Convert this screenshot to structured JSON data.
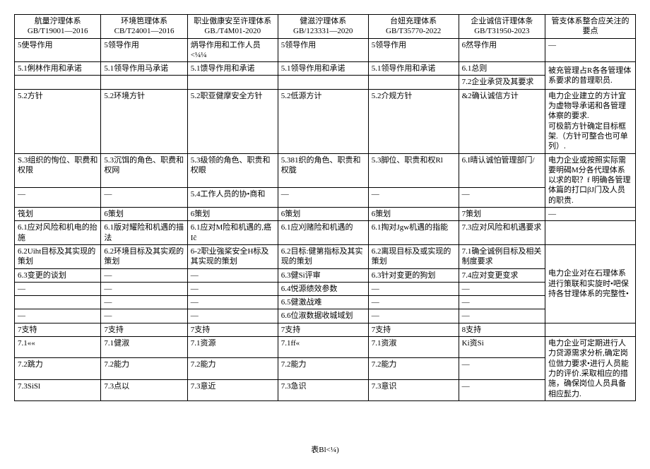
{
  "table": {
    "headers": [
      {
        "line1": "航量泞理体系",
        "line2": "GB/T19001—2016"
      },
      {
        "line1": "环境笆理体系",
        "line2": "CB/T24001—2016"
      },
      {
        "line1": "职业傲康安至许理体系",
        "line2": "GB./T4M01-2020"
      },
      {
        "line1": "健滋泞理体系",
        "line2": "GB/123331—2020"
      },
      {
        "line1": "台妞充理体系GB/T35770-2022",
        "line2": ""
      },
      {
        "line1": "企业诚信讦理体条",
        "line2": "GB/T31950-2023"
      },
      {
        "line1": "管支体系整合应关注的要点",
        "line2": ""
      }
    ],
    "rows": [
      [
        "5使导作用",
        "5领导作用",
        "炳导作用和工作人员<¼¼",
        "5领导作用",
        "5领导作用",
        "6然导作用",
        "—"
      ],
      [
        "5.1俐林作用和承诺",
        "5.1领导作用马承诺",
        "5.1馈导作用和承诺",
        "5.1领导作用和承诺",
        "5.1领导作用和承诺",
        "6.1总则",
        "__ROWSPAN__"
      ],
      [
        "",
        "",
        "",
        "",
        "",
        "7.2企业承贷及其要求",
        "__MERGED__被充管理占R各各管理体系要求的昔理职员."
      ],
      [
        "5.2方针",
        "5.2环境方针",
        "5.2职亚健摩安全方针",
        "5.2低源方计",
        "5.2介规方针",
        "&2确认诚信方计",
        "电力企业建立的方计宜为虚物导承诺和各管理体察的要求.<br>可极箭方针确定目标框架.（方针可整合也可单列）."
      ],
      [
        "S.3组织的恂位、职费和权限",
        "5.3沉饵的角色、职费和权网",
        "5.3级领的角色、职贵和权眼",
        "5.381织的角色、职贵和权胧",
        "5.3脚位、职贵和权Rl",
        "6.I晴认诚怕管理部门/",
        "__ROWSPAN__"
      ],
      [
        "—",
        "—",
        "5.4工作人员的协•商和",
        "—",
        "—",
        "—",
        "__MERGED__电力企业或按照实际需要明碣M分各代理体系以求的职？f 明确各管理体篇的打口βJ门及人员的职贵."
      ],
      [
        "筏划",
        "6策划",
        "6策划",
        "6策划",
        "6策划",
        "7策划",
        "—"
      ],
      [
        "6.1应对风险和机电的抬施",
        "6.1版对耀险和机遇的描法",
        "6.1应对M险和机遇的,癌Iĉ",
        "6.1应刈赌险和机遇的",
        "6.1掏对Jgw机遇的指能",
        "7.3应对风险和机遇要求",
        ""
      ],
      [
        "6.2Uiht目标及其实现的策划",
        "6.2环境目标及其实观的策划",
        "6-2职业強桨安全H标及其实现的策划",
        "6.2目标:健第指标及其实现的策划",
        "6.2离现目标及或实现的策划",
        "7.1确全诚例目标及相关制度要求",
        "__ROWSPAN__"
      ],
      [
        "6.3变更的谈划",
        "—",
        "—",
        "6.3健Si评审",
        "6.3针对变更的狗划",
        "7.4应对变更变求",
        "__MERGED__电力企业对在石理体系进行策联和实旋时•吧保持各甘理体系的完整性•"
      ],
      [
        "—",
        "—",
        "—",
        "6.4悦源绩效参数",
        "—",
        "—",
        ""
      ],
      [
        "",
        "—",
        "—",
        "6.5健激战难",
        "—",
        "—",
        "—"
      ],
      [
        "—",
        "—",
        "—",
        "6.6位淑数据收城域划",
        "—",
        "—",
        ""
      ],
      [
        "7支特",
        "7支持",
        "7支持",
        "7支持",
        "7支持",
        "8支持",
        ""
      ],
      [
        "7.1««",
        "7.1健淑",
        "7.1资源",
        "7.1ff«",
        "7.1资淑",
        "Ki资Si",
        "__ROWSPAN__"
      ],
      [
        "7.2跳力",
        "7.2能力",
        "7.2能力",
        "7.2能力",
        "7.2能力",
        "—",
        "__MERGED__电力企业可定期进行人力贷源需求分析,确定岗位倣力要求•进行人员能力的评价.采取相应的措施，确保岗位人员具备相应髭力."
      ],
      [
        "7.3SiSl",
        "7.3点以",
        "7.3意近",
        "7.3急识",
        "7.3意识",
        "—",
        ""
      ]
    ],
    "footer": "表Bl<¼)"
  }
}
